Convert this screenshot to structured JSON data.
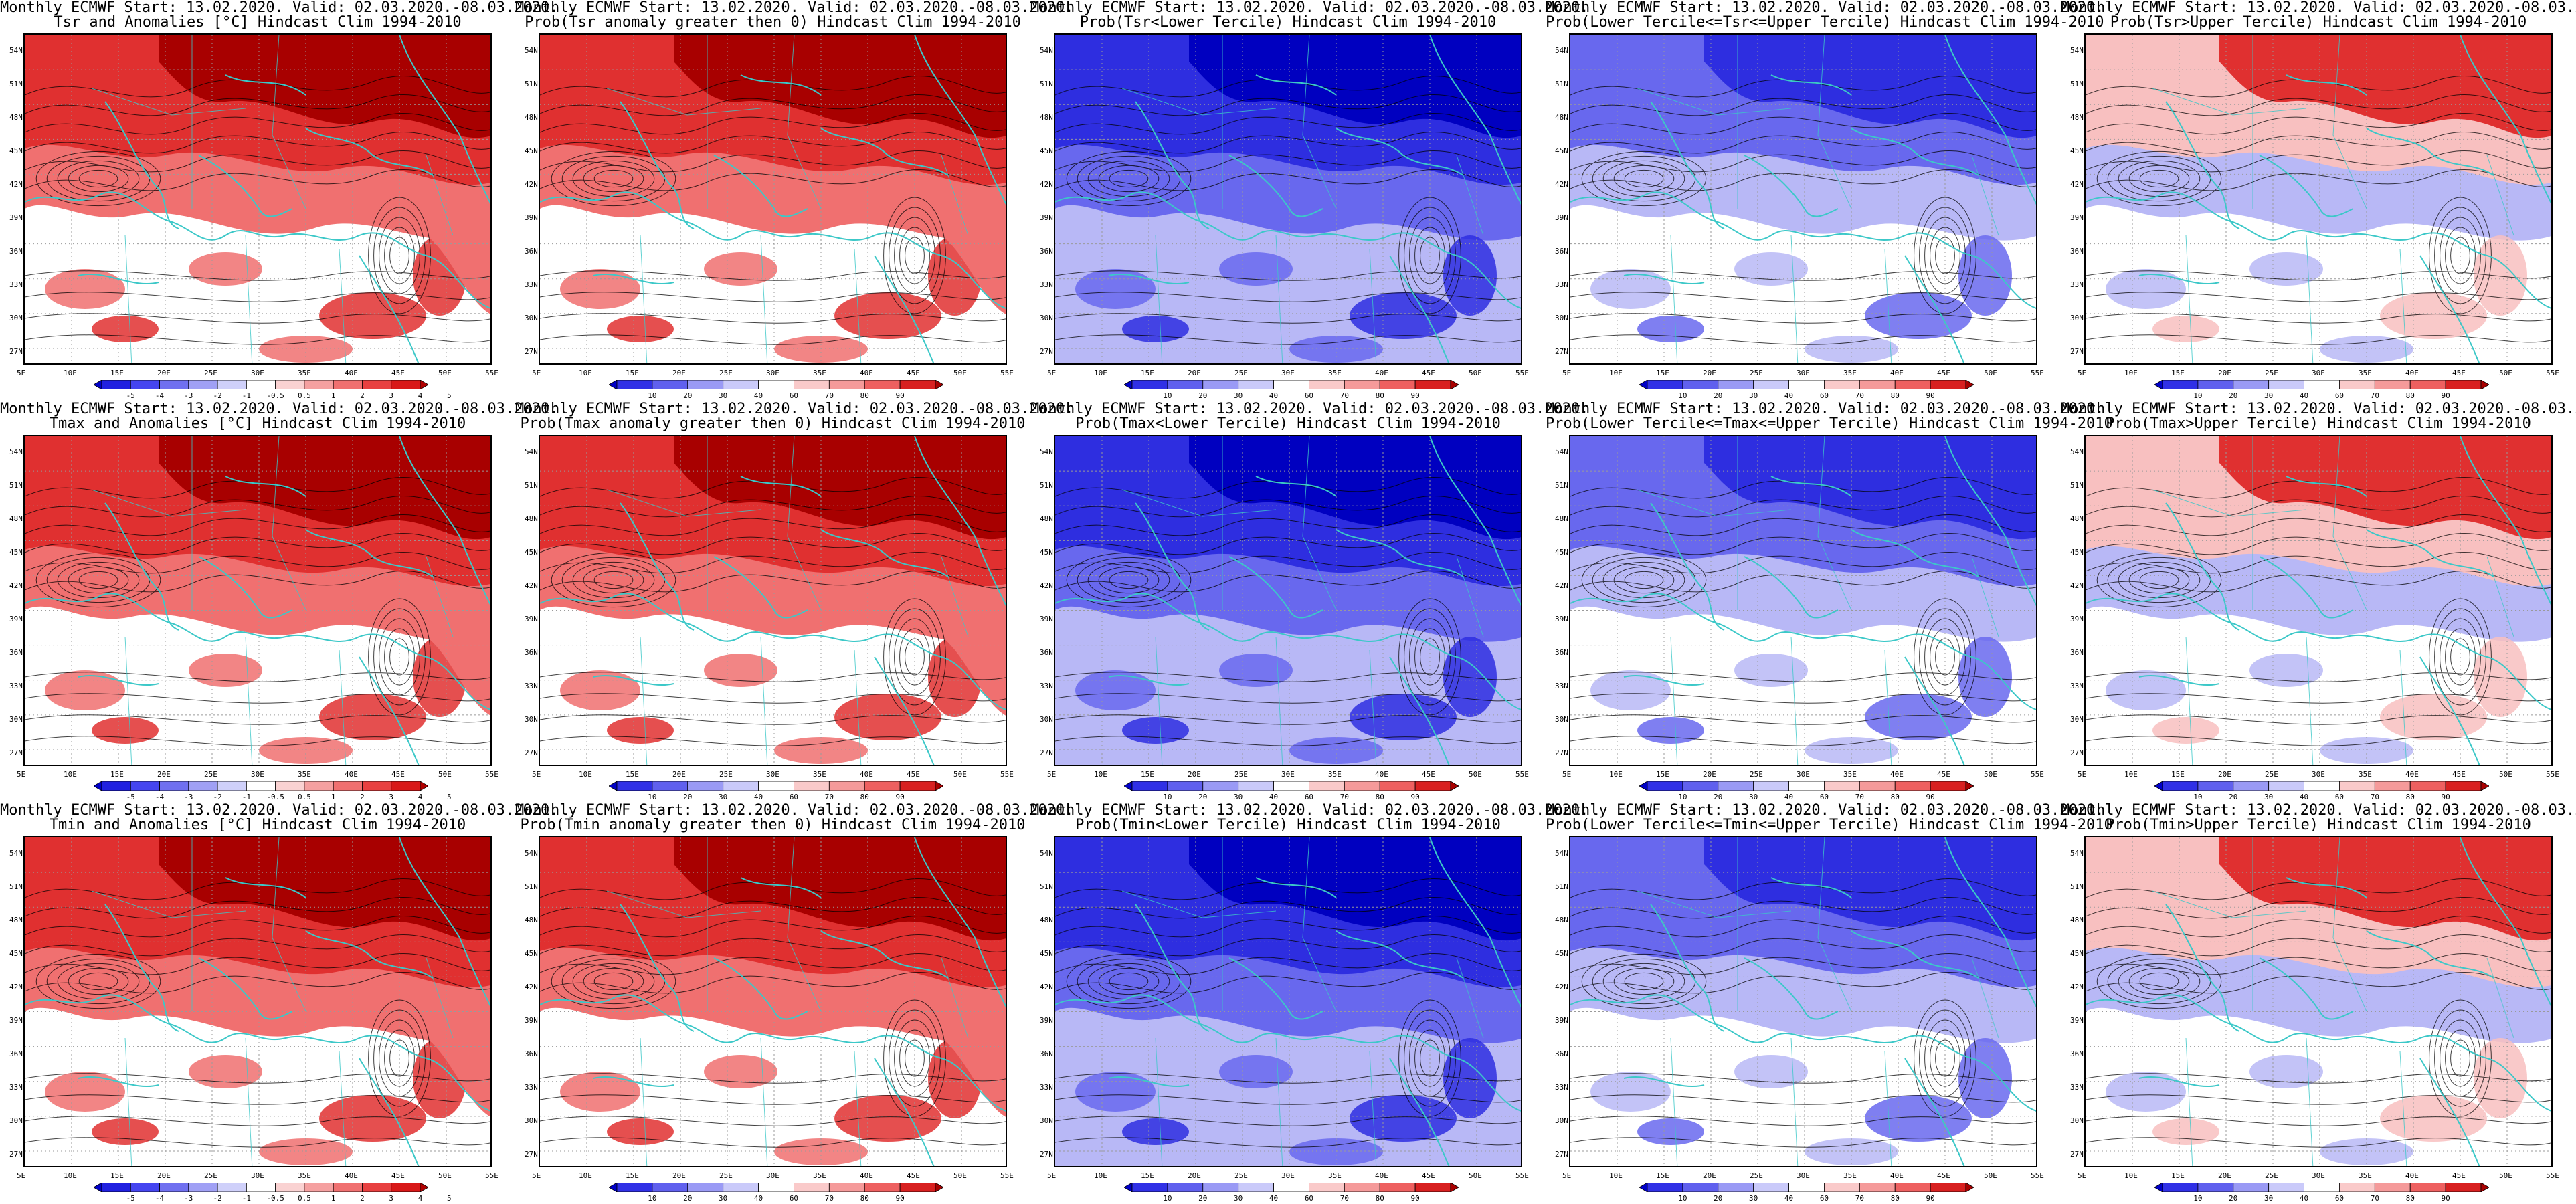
{
  "header_line": "Monthly ECMWF Start: 13.02.2020. Valid: 02.03.2020.-08.03.2020.",
  "lat_labels": [
    "54N",
    "51N",
    "48N",
    "45N",
    "42N",
    "39N",
    "36N",
    "33N",
    "30N",
    "27N"
  ],
  "lon_labels": [
    "5E",
    "10E",
    "15E",
    "20E",
    "25E",
    "30E",
    "35E",
    "40E",
    "45E",
    "50E",
    "55E"
  ],
  "colorbars": {
    "anomaly": {
      "ticks": [
        "-5",
        "-4",
        "-3",
        "-2",
        "-1",
        "-0.5",
        "0.5",
        "1",
        "2",
        "3",
        "4",
        "5"
      ],
      "colors": [
        "#0000c8",
        "#2020e0",
        "#4545f0",
        "#7070f0",
        "#a0a0f5",
        "#cfd0fa",
        "#ffffff",
        "#fad2d2",
        "#f5a0a0",
        "#f07070",
        "#e84040",
        "#d81818",
        "#b00000"
      ]
    },
    "probability": {
      "ticks": [
        "10",
        "20",
        "30",
        "40",
        "60",
        "70",
        "80",
        "90"
      ],
      "colors": [
        "#0000c8",
        "#3030e6",
        "#6060ee",
        "#9a9af5",
        "#cacafa",
        "#ffffff",
        "#facaca",
        "#f59a9a",
        "#ee6060",
        "#d82020",
        "#a80000"
      ]
    }
  },
  "colors": {
    "coastline": "#3cc8c8",
    "contour": "#000000",
    "red_dark": "#a80000",
    "red": "#e03030",
    "red_mid": "#f07070",
    "red_light": "#f8c0c0",
    "blue_dark": "#0000c0",
    "blue": "#2e2ee0",
    "blue_mid": "#6868ee",
    "blue_light": "#b8b8f6"
  },
  "panels": [
    {
      "id": "r1c1",
      "title": "Tsr and Anomalies [°C] Hindcast Clim 1994-2010",
      "scale": "anomaly",
      "scheme": "red"
    },
    {
      "id": "r1c2",
      "title": "Prob(Tsr anomaly greater then 0) Hindcast Clim 1994-2010",
      "scale": "probability",
      "scheme": "red"
    },
    {
      "id": "r1c3",
      "title": "Prob(Tsr<Lower Tercile) Hindcast Clim 1994-2010",
      "scale": "probability",
      "scheme": "blue"
    },
    {
      "id": "r1c4",
      "title": "Prob(Lower Tercile<=Tsr<=Upper Tercile) Hindcast Clim 1994-2010",
      "scale": "probability",
      "scheme": "mixblue"
    },
    {
      "id": "r1c5",
      "title": "Prob(Tsr>Upper Tercile) Hindcast Clim 1994-2010",
      "scale": "probability",
      "scheme": "mixred"
    },
    {
      "id": "r2c1",
      "title": "Tmax and Anomalies [°C] Hindcast Clim 1994-2010",
      "scale": "anomaly",
      "scheme": "red"
    },
    {
      "id": "r2c2",
      "title": "Prob(Tmax anomaly greater then 0) Hindcast Clim 1994-2010",
      "scale": "probability",
      "scheme": "red"
    },
    {
      "id": "r2c3",
      "title": "Prob(Tmax<Lower Tercile) Hindcast Clim 1994-2010",
      "scale": "probability",
      "scheme": "blue"
    },
    {
      "id": "r2c4",
      "title": "Prob(Lower Tercile<=Tmax<=Upper Tercile) Hindcast Clim 1994-2010",
      "scale": "probability",
      "scheme": "mixblue"
    },
    {
      "id": "r2c5",
      "title": "Prob(Tmax>Upper Tercile) Hindcast Clim 1994-2010",
      "scale": "probability",
      "scheme": "mixred"
    },
    {
      "id": "r3c1",
      "title": "Tmin and Anomalies [°C] Hindcast Clim 1994-2010",
      "scale": "anomaly",
      "scheme": "red"
    },
    {
      "id": "r3c2",
      "title": "Prob(Tmin anomaly greater then 0) Hindcast Clim 1994-2010",
      "scale": "probability",
      "scheme": "red"
    },
    {
      "id": "r3c3",
      "title": "Prob(Tmin<Lower Tercile) Hindcast Clim 1994-2010",
      "scale": "probability",
      "scheme": "blue"
    },
    {
      "id": "r3c4",
      "title": "Prob(Lower Tercile<=Tmin<=Upper Tercile) Hindcast Clim 1994-2010",
      "scale": "probability",
      "scheme": "mixblue"
    },
    {
      "id": "r3c5",
      "title": "Prob(Tmin>Upper Tercile) Hindcast Clim 1994-2010",
      "scale": "probability",
      "scheme": "mixred"
    }
  ]
}
